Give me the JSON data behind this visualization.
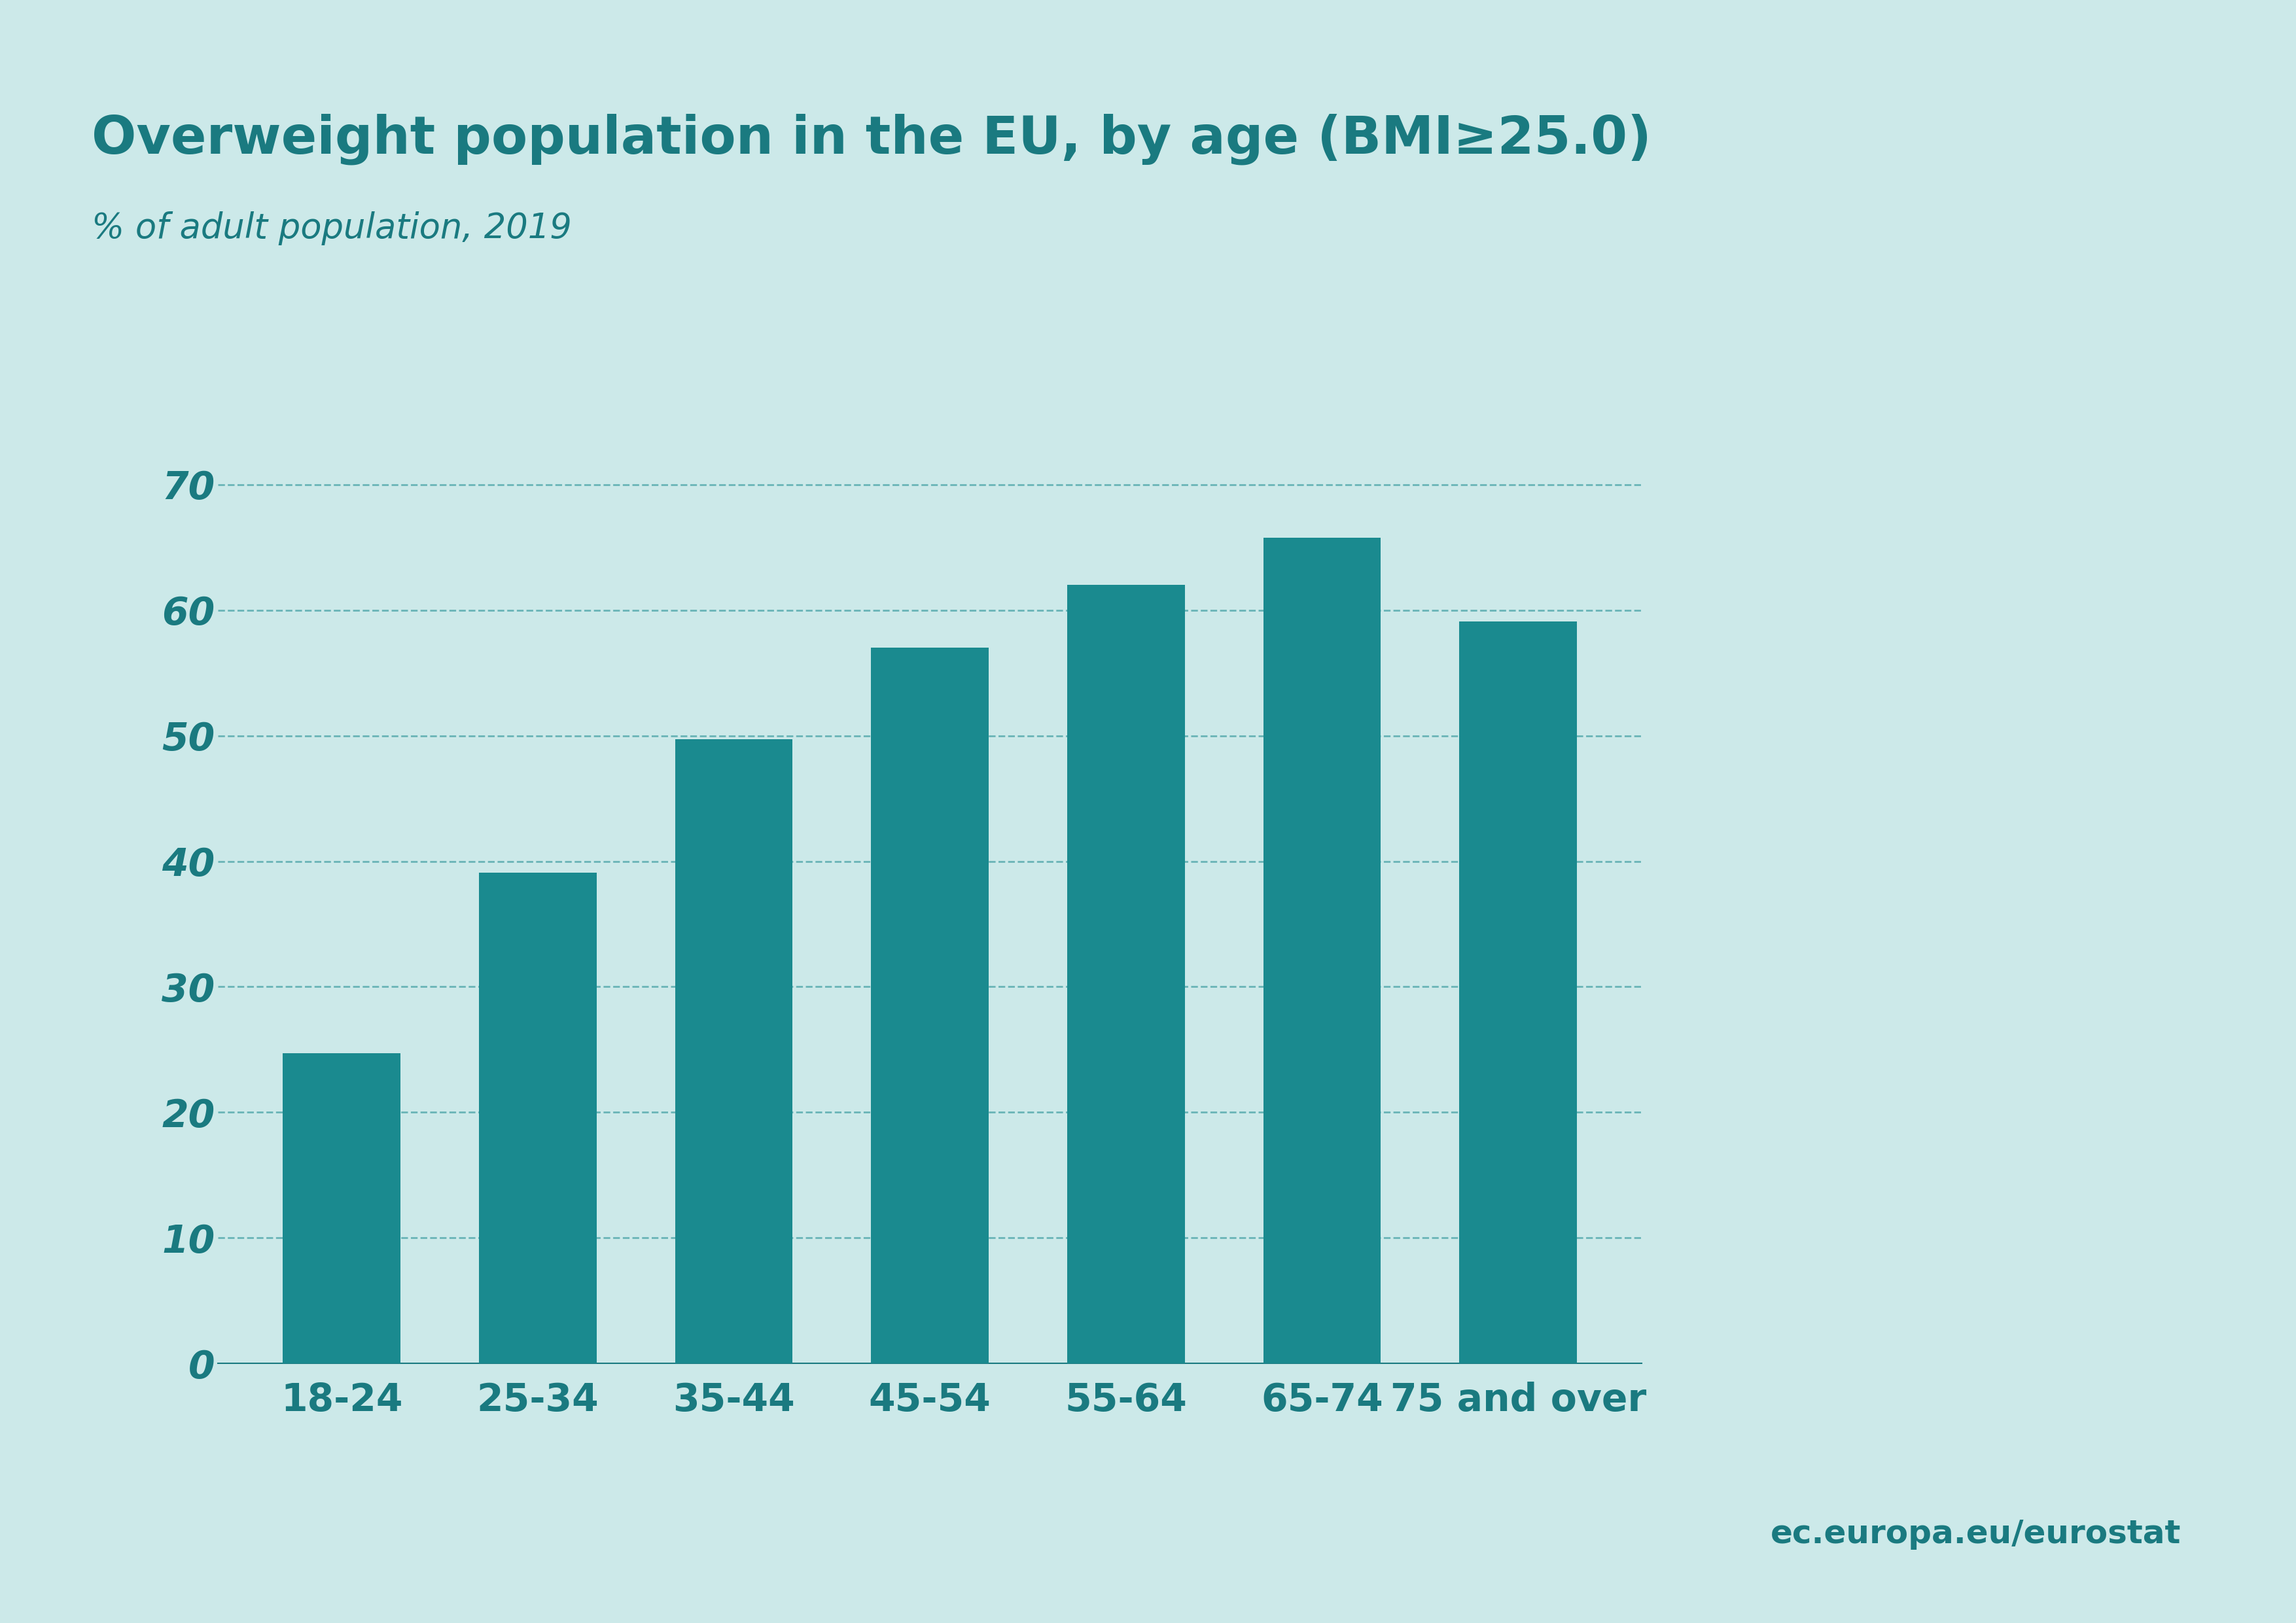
{
  "title": "Overweight population in the EU, by age (BMI≥25.0)",
  "subtitle": "% of adult population, 2019",
  "categories": [
    "18-24",
    "25-34",
    "35-44",
    "45-54",
    "55-64",
    "65-74",
    "75 and over"
  ],
  "values": [
    24.7,
    39.1,
    49.7,
    57.0,
    62.0,
    65.8,
    59.1
  ],
  "bar_color": "#1a8a8f",
  "background_color": "#cce9e9",
  "white_strip_color": "#ffffff",
  "text_color": "#1a7a80",
  "grid_color": "#1a8a8f",
  "ylim": [
    0,
    75
  ],
  "yticks": [
    0,
    10,
    20,
    30,
    40,
    50,
    60,
    70
  ],
  "title_fontsize": 58,
  "subtitle_fontsize": 38,
  "ytick_fontsize": 42,
  "xtick_fontsize": 42,
  "watermark": "ec.europa.eu/eurostat",
  "watermark_fontsize": 36,
  "watermark_color": "#1a7a80"
}
